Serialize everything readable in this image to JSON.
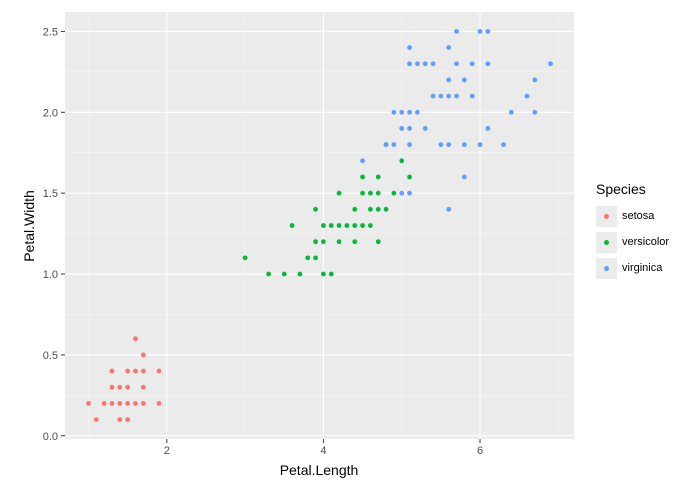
{
  "chart_data": {
    "type": "scatter",
    "xlabel": "Petal.Length",
    "ylabel": "Petal.Width",
    "xlim": [
      0.7,
      7.2
    ],
    "ylim": [
      -0.02,
      2.62
    ],
    "x_ticks": [
      2,
      4,
      6
    ],
    "x_tick_labels": [
      "2",
      "4",
      "6"
    ],
    "y_ticks": [
      0.0,
      0.5,
      1.0,
      1.5,
      2.0,
      2.5
    ],
    "y_tick_labels": [
      "0.0",
      "0.5",
      "1.0",
      "1.5",
      "2.0",
      "2.5"
    ],
    "grid": true,
    "legend": {
      "title": "Species",
      "position": "right"
    },
    "series": [
      {
        "name": "setosa",
        "color": "#F8766D",
        "points": [
          [
            1.0,
            0.2
          ],
          [
            1.1,
            0.1
          ],
          [
            1.2,
            0.2
          ],
          [
            1.3,
            0.2
          ],
          [
            1.3,
            0.3
          ],
          [
            1.3,
            0.4
          ],
          [
            1.4,
            0.2
          ],
          [
            1.4,
            0.1
          ],
          [
            1.4,
            0.3
          ],
          [
            1.5,
            0.2
          ],
          [
            1.5,
            0.1
          ],
          [
            1.5,
            0.4
          ],
          [
            1.5,
            0.3
          ],
          [
            1.6,
            0.2
          ],
          [
            1.6,
            0.4
          ],
          [
            1.6,
            0.6
          ],
          [
            1.7,
            0.2
          ],
          [
            1.7,
            0.3
          ],
          [
            1.7,
            0.4
          ],
          [
            1.7,
            0.5
          ],
          [
            1.9,
            0.2
          ],
          [
            1.9,
            0.4
          ]
        ]
      },
      {
        "name": "versicolor",
        "color": "#00BA38",
        "points": [
          [
            3.0,
            1.1
          ],
          [
            3.3,
            1.0
          ],
          [
            3.5,
            1.0
          ],
          [
            3.6,
            1.3
          ],
          [
            3.7,
            1.0
          ],
          [
            3.8,
            1.1
          ],
          [
            3.9,
            1.1
          ],
          [
            3.9,
            1.2
          ],
          [
            3.9,
            1.4
          ],
          [
            4.0,
            1.0
          ],
          [
            4.0,
            1.2
          ],
          [
            4.0,
            1.3
          ],
          [
            4.1,
            1.0
          ],
          [
            4.1,
            1.3
          ],
          [
            4.2,
            1.2
          ],
          [
            4.2,
            1.3
          ],
          [
            4.2,
            1.5
          ],
          [
            4.3,
            1.3
          ],
          [
            4.4,
            1.2
          ],
          [
            4.4,
            1.3
          ],
          [
            4.4,
            1.4
          ],
          [
            4.5,
            1.3
          ],
          [
            4.5,
            1.5
          ],
          [
            4.5,
            1.6
          ],
          [
            4.6,
            1.3
          ],
          [
            4.6,
            1.4
          ],
          [
            4.6,
            1.5
          ],
          [
            4.7,
            1.2
          ],
          [
            4.7,
            1.4
          ],
          [
            4.7,
            1.5
          ],
          [
            4.7,
            1.6
          ],
          [
            4.8,
            1.4
          ],
          [
            4.8,
            1.8
          ],
          [
            4.9,
            1.5
          ],
          [
            5.0,
            1.7
          ],
          [
            5.1,
            1.6
          ]
        ]
      },
      {
        "name": "virginica",
        "color": "#619CFF",
        "points": [
          [
            4.5,
            1.7
          ],
          [
            4.8,
            1.8
          ],
          [
            4.9,
            1.8
          ],
          [
            4.9,
            2.0
          ],
          [
            5.0,
            1.5
          ],
          [
            5.0,
            1.9
          ],
          [
            5.0,
            2.0
          ],
          [
            5.1,
            1.5
          ],
          [
            5.1,
            1.8
          ],
          [
            5.1,
            1.9
          ],
          [
            5.1,
            2.0
          ],
          [
            5.1,
            2.3
          ],
          [
            5.1,
            2.4
          ],
          [
            5.2,
            2.0
          ],
          [
            5.2,
            2.3
          ],
          [
            5.3,
            1.9
          ],
          [
            5.3,
            2.3
          ],
          [
            5.4,
            2.1
          ],
          [
            5.4,
            2.3
          ],
          [
            5.5,
            1.8
          ],
          [
            5.5,
            2.1
          ],
          [
            5.6,
            1.4
          ],
          [
            5.6,
            1.8
          ],
          [
            5.6,
            2.1
          ],
          [
            5.6,
            2.2
          ],
          [
            5.6,
            2.4
          ],
          [
            5.7,
            2.1
          ],
          [
            5.7,
            2.3
          ],
          [
            5.7,
            2.5
          ],
          [
            5.8,
            1.6
          ],
          [
            5.8,
            1.8
          ],
          [
            5.8,
            2.2
          ],
          [
            5.9,
            2.1
          ],
          [
            5.9,
            2.3
          ],
          [
            6.0,
            1.8
          ],
          [
            6.0,
            2.5
          ],
          [
            6.1,
            1.9
          ],
          [
            6.1,
            2.3
          ],
          [
            6.1,
            2.5
          ],
          [
            6.3,
            1.8
          ],
          [
            6.4,
            2.0
          ],
          [
            6.6,
            2.1
          ],
          [
            6.7,
            2.0
          ],
          [
            6.7,
            2.2
          ],
          [
            6.9,
            2.3
          ]
        ]
      }
    ]
  }
}
